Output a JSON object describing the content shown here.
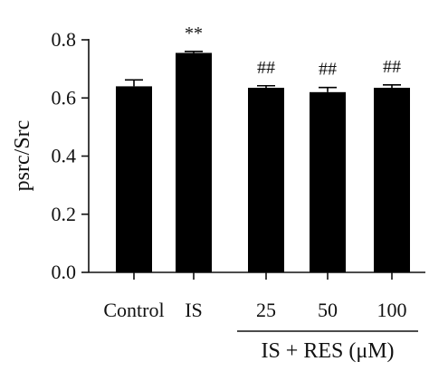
{
  "chart_data": {
    "type": "bar",
    "ylabel": "psrc/Src",
    "ylim": [
      0,
      0.8
    ],
    "yticks": [
      "0.0",
      "0.2",
      "0.4",
      "0.6",
      "0.8"
    ],
    "categories": [
      "Control",
      "IS",
      "25",
      "50",
      "100"
    ],
    "values": [
      0.64,
      0.755,
      0.635,
      0.62,
      0.635
    ],
    "errors": [
      0.022,
      0.005,
      0.007,
      0.016,
      0.01
    ],
    "significance": [
      "",
      "**",
      "##",
      "##",
      "##"
    ],
    "group_label": "IS + RES (μM)",
    "bar_color": "#000000",
    "grid": false
  }
}
